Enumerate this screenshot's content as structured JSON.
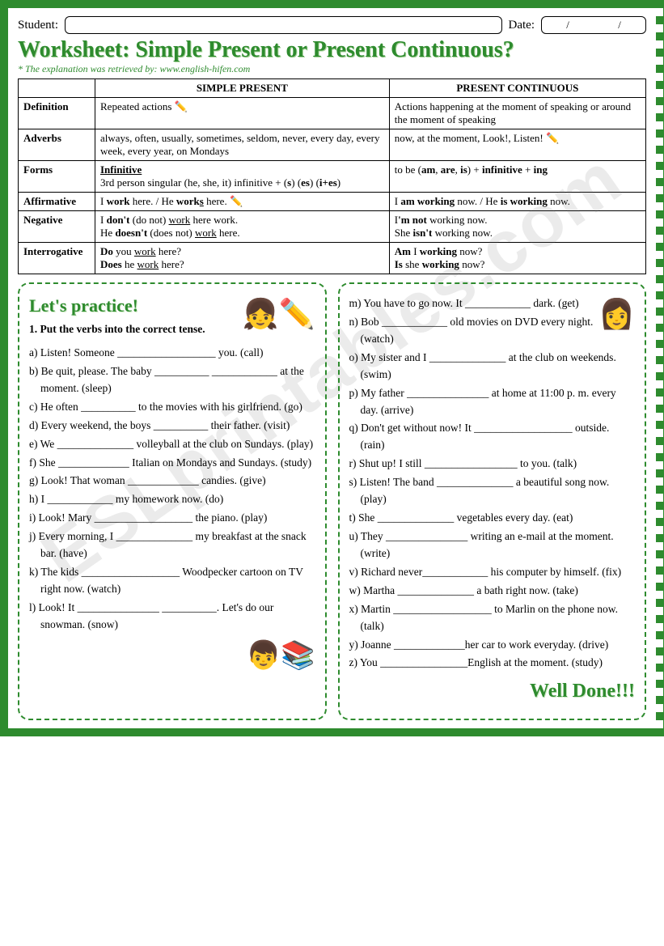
{
  "header": {
    "student_label": "Student:",
    "date_label": "Date:",
    "date_sep1": "/",
    "date_sep2": "/"
  },
  "title": "Worksheet: Simple Present or Present Continuous?",
  "subtitle": "* The explanation was retrieved by: www.english-hifen.com",
  "watermark": "ESLprintables.com",
  "table": {
    "col1_header": "SIMPLE PRESENT",
    "col2_header": "PRESENT CONTINUOUS",
    "rows": [
      {
        "label": "Definition",
        "c1": "Repeated actions  ✏️",
        "c2": "Actions happening at the moment of speaking or around the moment of speaking"
      },
      {
        "label": "Adverbs",
        "c1": "always, often, usually, sometimes, seldom, never, every day, every week, every year, on Mondays",
        "c2": "now, at the moment, Look!, Listen!  ✏️"
      },
      {
        "label": "Forms",
        "c1": "Infinitive\n3rd person singular (he, she, it) infinitive + (s) (es) (i+es)",
        "c2": "to be (am, are, is) + infinitive + ing"
      },
      {
        "label": "Affirmative",
        "c1": "I work here.  / He works here.  ✏️",
        "c2": "I am working now. / He is working now."
      },
      {
        "label": "Negative",
        "c1": "I don't (do not) work here work.\nHe doesn't (does not) work here.",
        "c2": "I'm not working now.\nShe isn't working now."
      },
      {
        "label": "Interrogative",
        "c1": "Do you work here?\nDoes he work here?",
        "c2": "Am I working now?\nIs she working now?"
      }
    ]
  },
  "practice": {
    "title": "Let's practice!",
    "instruction": "1. Put the verbs into the correct tense.",
    "left": [
      "a) Listen! Someone __________________ you. (call)",
      "b) Be quit, please. The baby __________ ____________ at the moment. (sleep)",
      "c) He often __________ to the movies with his girlfriend. (go)",
      "d) Every weekend, the boys __________ their father. (visit)",
      "e) We ______________ volleyball at the club on Sundays. (play)",
      "f) She _____________ Italian on Mondays and Sundays. (study)",
      "g) Look! That woman _____________ candies. (give)",
      "h)  I ____________ my homework now. (do)",
      "i)  Look! Mary __________________ the piano. (play)",
      "j)  Every morning, I ______________ my breakfast at the snack bar. (have)",
      "k) The kids __________________ Woodpecker cartoon on TV right now. (watch)",
      "l) Look! It _______________ __________. Let's do our snowman. (snow)"
    ],
    "right": [
      "m) You have to go now. It ____________ dark. (get)",
      "n) Bob ____________ old movies on DVD every night. (watch)",
      "o) My sister and I ______________ at the club on weekends. (swim)",
      "p) My father _______________ at home at 11:00 p. m. every day. (arrive)",
      "q) Don't get without now! It __________________ outside. (rain)",
      "r) Shut up! I still _________________ to you. (talk)",
      "s) Listen! The band ______________ a beautiful song now. (play)",
      "t) She ______________ vegetables every day. (eat)",
      "u) They _______________ writing an e-mail at the moment. (write)",
      "v) Richard never____________ his computer by himself. (fix)",
      "w) Martha ______________ a bath right now. (take)",
      "x) Martin __________________ to Marlin on the phone now. (talk)",
      "y) Joanne _____________her car to work everyday. (drive)",
      "z) You ________________English at the moment. (study)"
    ],
    "well_done": "Well Done!!!"
  },
  "colors": {
    "accent": "#2e8b2e",
    "border": "#000000",
    "background": "#ffffff"
  }
}
